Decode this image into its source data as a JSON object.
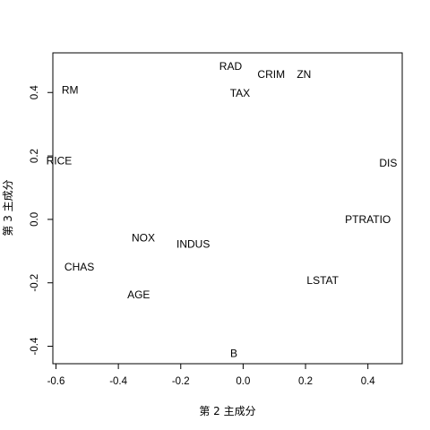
{
  "chart_data": {
    "type": "scatter",
    "xlabel": "第 2 主成分",
    "ylabel": "第 3 主成分",
    "xlim": [
      -0.61,
      0.51
    ],
    "ylim": [
      -0.455,
      0.525
    ],
    "xticks": [
      {
        "value": -0.6,
        "label": "-0.6"
      },
      {
        "value": -0.4,
        "label": "-0.4"
      },
      {
        "value": -0.2,
        "label": "-0.2"
      },
      {
        "value": 0.0,
        "label": "0.0"
      },
      {
        "value": 0.2,
        "label": "0.2"
      },
      {
        "value": 0.4,
        "label": "0.4"
      }
    ],
    "yticks": [
      {
        "value": -0.4,
        "label": "-0.4"
      },
      {
        "value": -0.2,
        "label": "-0.2"
      },
      {
        "value": 0.0,
        "label": "0.0"
      },
      {
        "value": 0.2,
        "label": "0.2"
      },
      {
        "value": 0.4,
        "label": "0.4"
      }
    ],
    "points": [
      {
        "label": "RAD",
        "x": -0.04,
        "y": 0.48
      },
      {
        "label": "CRIM",
        "x": 0.09,
        "y": 0.455
      },
      {
        "label": "ZN",
        "x": 0.195,
        "y": 0.455
      },
      {
        "label": "TAX",
        "x": -0.01,
        "y": 0.395
      },
      {
        "label": "RM",
        "x": -0.555,
        "y": 0.405
      },
      {
        "label": "RICE",
        "x": -0.59,
        "y": 0.183
      },
      {
        "label": "DIS",
        "x": 0.465,
        "y": 0.175
      },
      {
        "label": "PTRATIO",
        "x": 0.4,
        "y": -0.003
      },
      {
        "label": "NOX",
        "x": -0.32,
        "y": -0.06
      },
      {
        "label": "INDUS",
        "x": -0.16,
        "y": -0.08
      },
      {
        "label": "CHAS",
        "x": -0.525,
        "y": -0.153
      },
      {
        "label": "LSTAT",
        "x": 0.255,
        "y": -0.195
      },
      {
        "label": "AGE",
        "x": -0.335,
        "y": -0.24
      },
      {
        "label": "B",
        "x": -0.03,
        "y": -0.425
      }
    ]
  }
}
